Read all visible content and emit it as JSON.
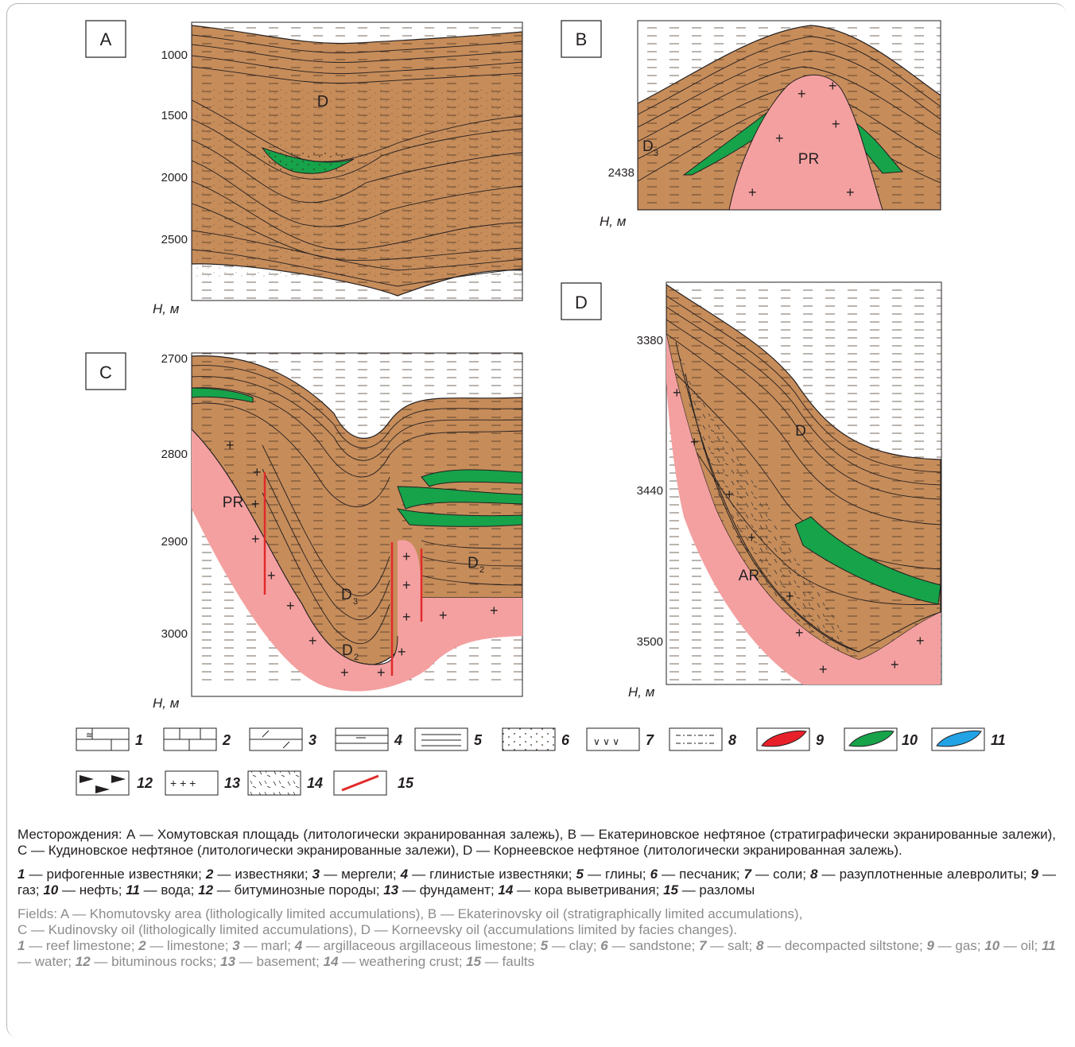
{
  "panels": {
    "A": {
      "label": "A",
      "ticks": [
        "1000",
        "1500",
        "2000",
        "2500"
      ],
      "units": "Н, м",
      "unit_label": "D"
    },
    "B": {
      "label": "B",
      "ticks": [
        "2438"
      ],
      "units": "Н, м",
      "unit_labels": [
        "D",
        "3",
        "PR"
      ]
    },
    "C": {
      "label": "C",
      "ticks": [
        "2700",
        "2800",
        "2900",
        "3000"
      ],
      "units": "Н, м",
      "unit_labels": [
        "PR",
        "D",
        "3",
        "D",
        "2",
        "D",
        "2"
      ]
    },
    "D": {
      "label": "D",
      "ticks": [
        "3380",
        "3440",
        "3500"
      ],
      "units": "Н, м",
      "unit_labels": [
        "D",
        "AR"
      ]
    }
  },
  "legend": {
    "items": [
      "1",
      "2",
      "3",
      "4",
      "5",
      "6",
      "7",
      "8",
      "9",
      "10",
      "11",
      "12",
      "13",
      "14",
      "15"
    ],
    "colors": {
      "gas": "#e8202a",
      "oil": "#16a34a",
      "water": "#22a3e6",
      "fault": "#e22a2a",
      "rock": "#c68c5a",
      "basement": "#f4a0a0"
    }
  },
  "caption": {
    "fields_ru": "Месторождения: А — Хомутовская площадь (литологически экранированная залежь), В — Екатериновское нефтяное (стратиграфически экранированные залежи), С — Кудиновское нефтяное (литологически экранированные залежи), D — Корнеевское нефтяное (литологически экранированная залежь).",
    "legend_ru": [
      {
        "n": "1",
        "t": " — рифогенные известняки; "
      },
      {
        "n": "2",
        "t": " — известняки; "
      },
      {
        "n": "3",
        "t": " — мергели; "
      },
      {
        "n": "4",
        "t": " — глинистые известняки; "
      },
      {
        "n": "5",
        "t": " — глины; "
      },
      {
        "n": "6",
        "t": " — песчаник; "
      },
      {
        "n": "7",
        "t": " — соли; "
      },
      {
        "n": "8",
        "t": " — разуплотненные алевролиты; "
      },
      {
        "n": "9",
        "t": " — газ; "
      },
      {
        "n": "10",
        "t": " — нефть; "
      },
      {
        "n": "11",
        "t": " — вода; "
      },
      {
        "n": "12",
        "t": " — битуминозные породы; "
      },
      {
        "n": "13",
        "t": " — фундамент; "
      },
      {
        "n": "14",
        "t": " — кора выветривания; "
      },
      {
        "n": "15",
        "t": " — разломы"
      }
    ],
    "fields_en_1": "Fields: A — Khomutovsky area (lithologically limited accumulations), B — Ekaterinovsky oil (stratigraphically limited accumulations),",
    "fields_en_2": "C — Kudinovsky oil (lithologically limited accumulations), D — Korneevsky oil (accumulations limited by facies changes).",
    "legend_en": [
      {
        "n": "1",
        "t": " — reef limestone; "
      },
      {
        "n": "2",
        "t": " — limestone; "
      },
      {
        "n": "3",
        "t": " — marl; "
      },
      {
        "n": "4",
        "t": " — argillaceous argillaceous limestone; "
      },
      {
        "n": "5",
        "t": " — clay; "
      },
      {
        "n": "6",
        "t": " — sandstone; "
      },
      {
        "n": "7",
        "t": " — salt; "
      },
      {
        "n": "8",
        "t": " — decompacted siltstone; "
      },
      {
        "n": "9",
        "t": " — gas; "
      },
      {
        "n": "10",
        "t": " — oil; "
      },
      {
        "n": "11",
        "t": " — water; "
      },
      {
        "n": "12",
        "t": " — bituminous rocks; "
      },
      {
        "n": "13",
        "t": " — basement; "
      },
      {
        "n": "14",
        "t": " — weathering crust; "
      },
      {
        "n": "15",
        "t": " — faults"
      }
    ]
  }
}
